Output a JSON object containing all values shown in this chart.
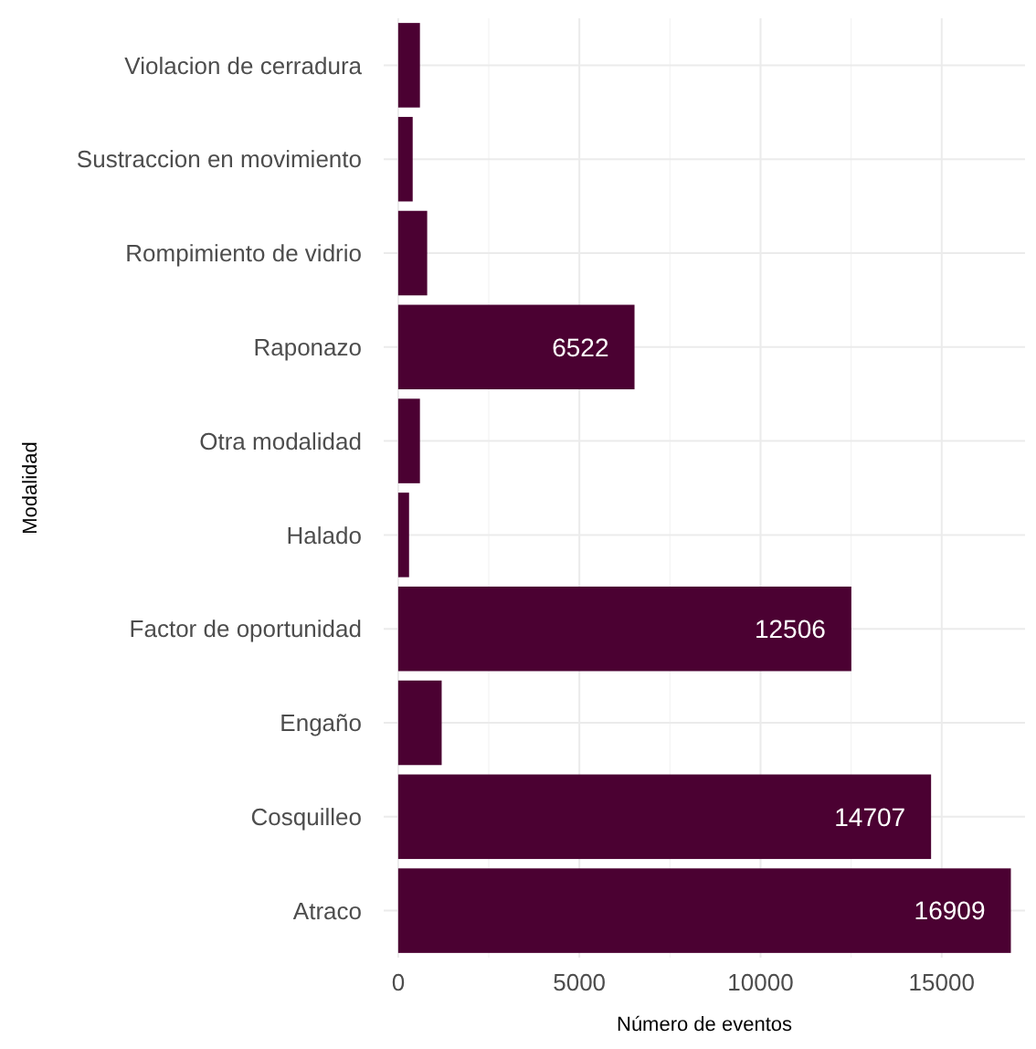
{
  "chart_data": {
    "type": "bar",
    "orientation": "horizontal",
    "xlabel": "Número de eventos",
    "ylabel": "Modalidad",
    "categories": [
      "Violacion de cerradura",
      "Sustraccion en movimiento",
      "Rompimiento de vidrio",
      "Raponazo",
      "Otra modalidad",
      "Halado",
      "Factor de oportunidad",
      "Engaño",
      "Cosquilleo",
      "Atraco"
    ],
    "values": [
      600,
      400,
      800,
      6522,
      600,
      300,
      12506,
      1200,
      14707,
      16909
    ],
    "value_labels": [
      null,
      null,
      null,
      "6522",
      null,
      null,
      "12506",
      null,
      "14707",
      "16909"
    ],
    "color": "#4b0132",
    "xlim": [
      -400,
      17300
    ],
    "xticks": [
      0,
      5000,
      10000,
      15000
    ],
    "grid": true
  }
}
